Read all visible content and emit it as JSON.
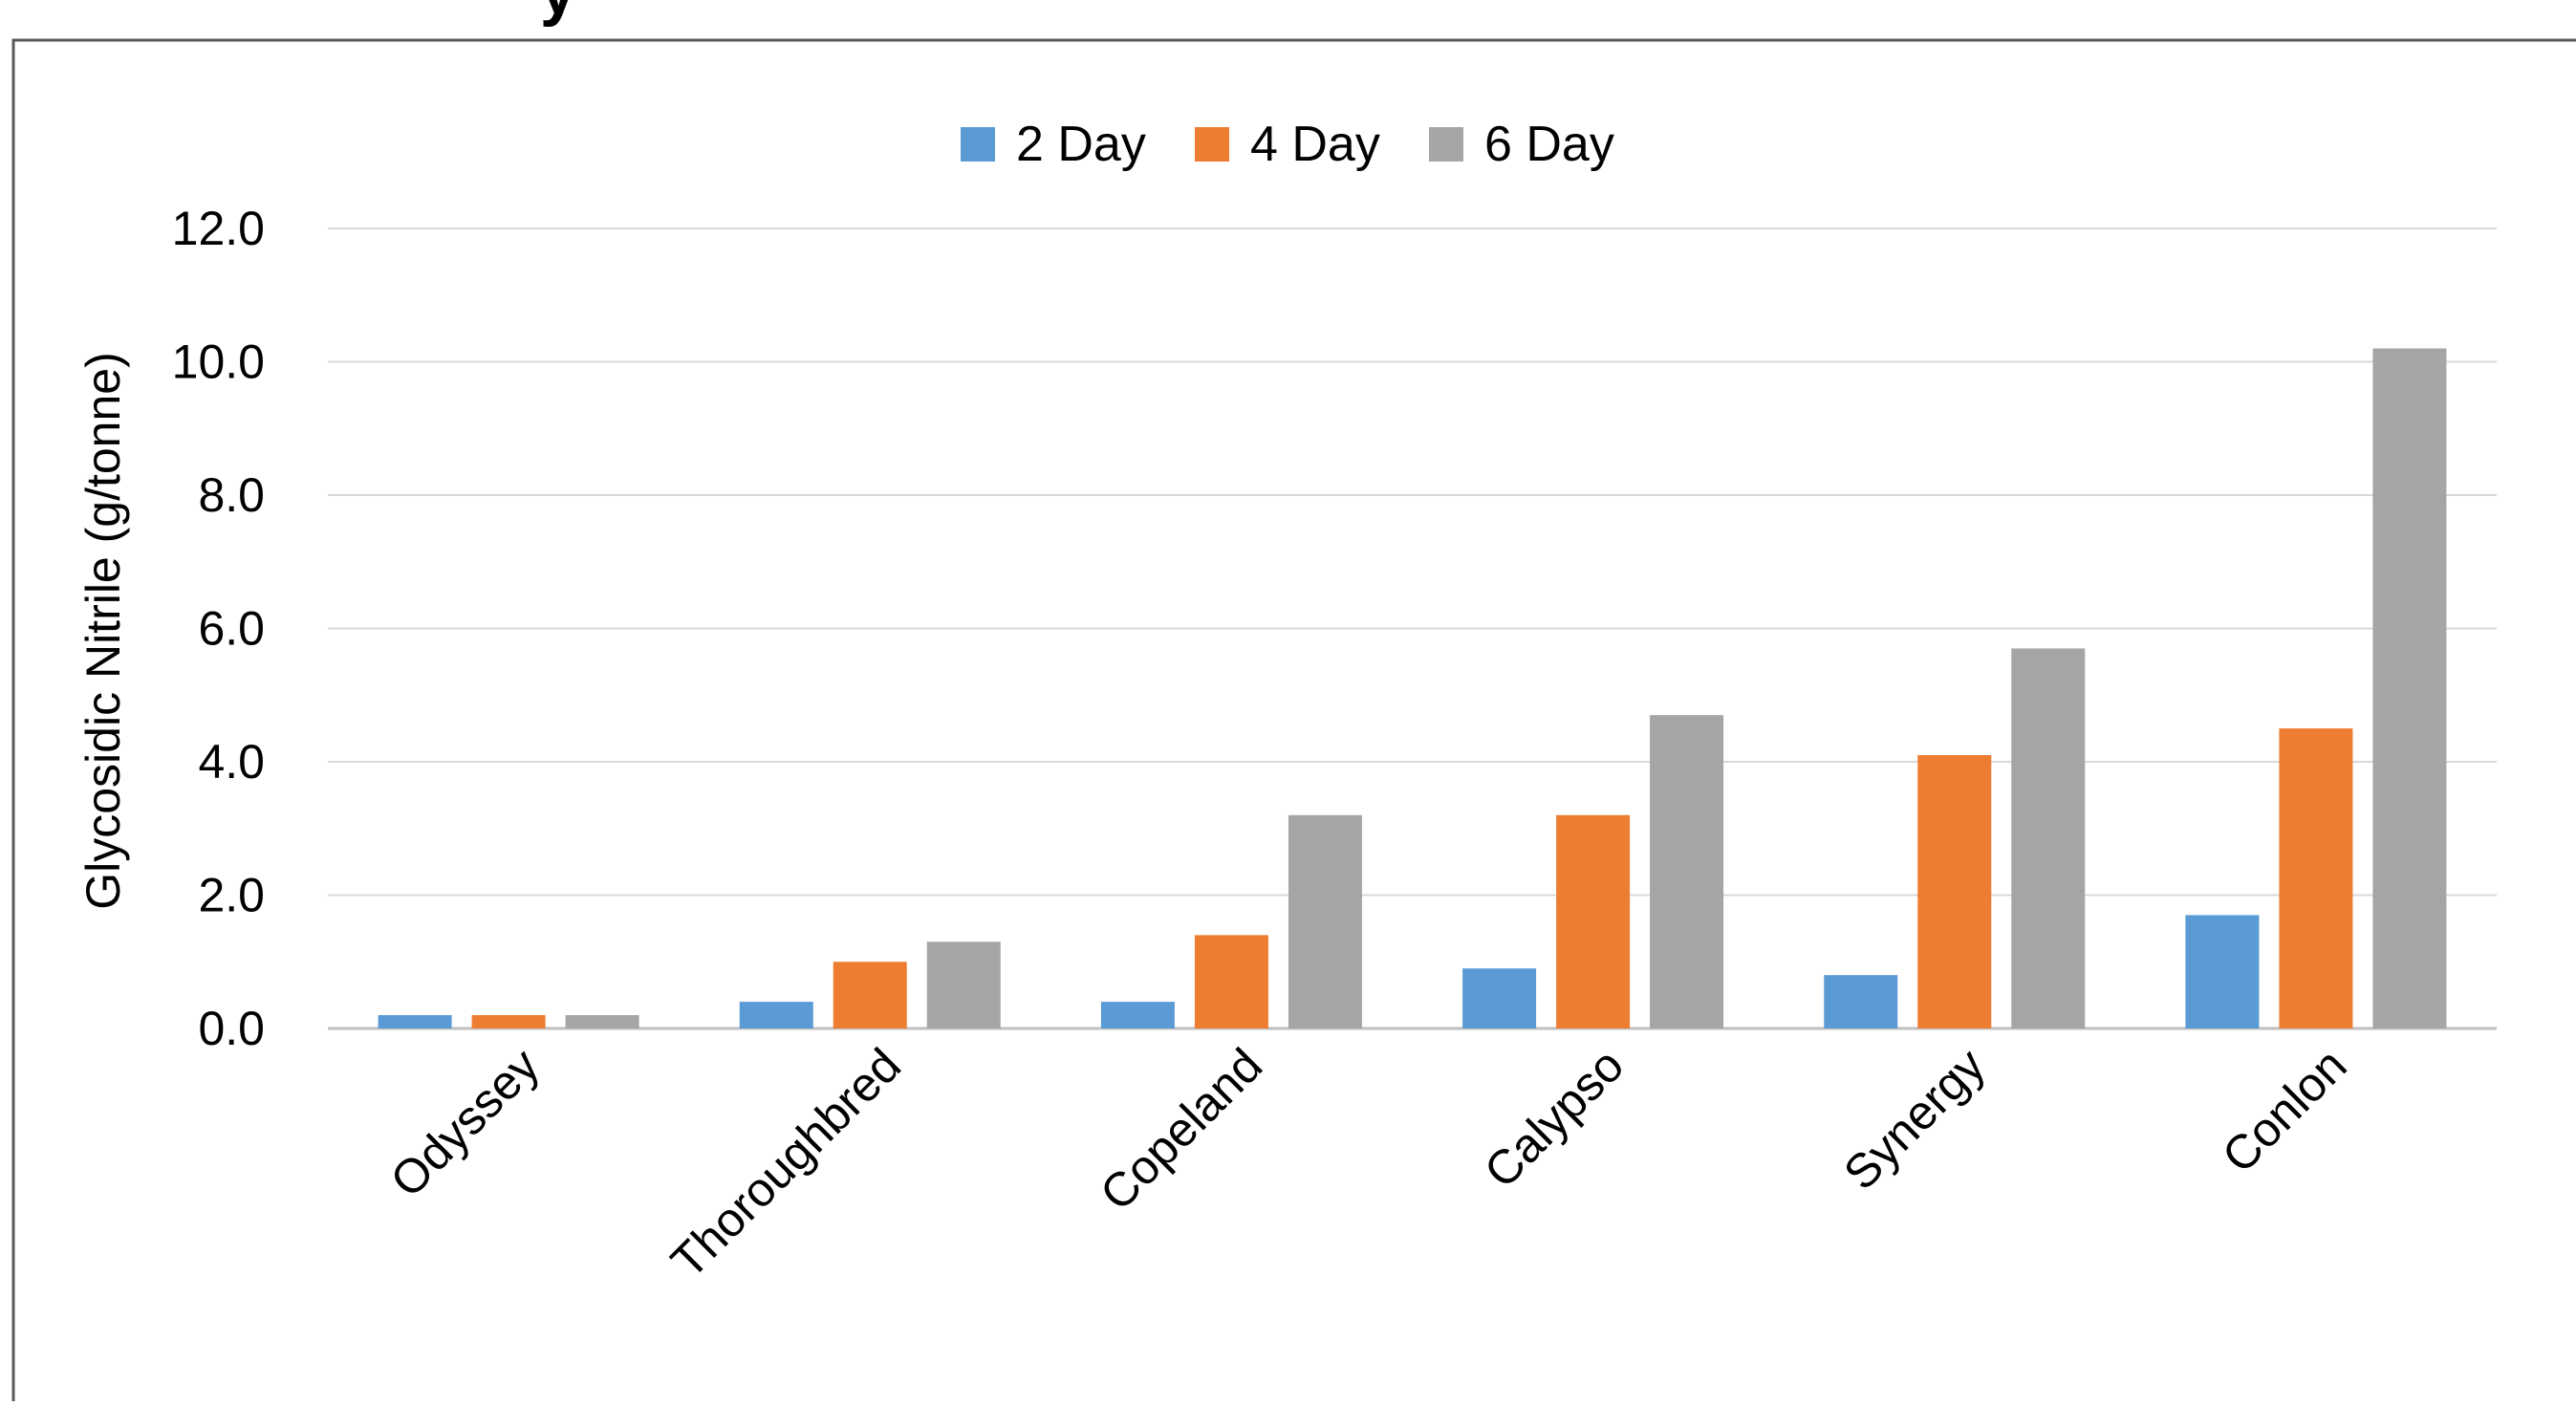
{
  "chart_data": {
    "type": "bar",
    "title_fragment": "y",
    "categories": [
      "Odyssey",
      "Thoroughbred",
      "Copeland",
      "Calypso",
      "Synergy",
      "Conlon"
    ],
    "series": [
      {
        "name": "2 Day",
        "color": "#5B9BD5",
        "values": [
          0.2,
          0.4,
          0.4,
          0.9,
          0.8,
          1.7
        ]
      },
      {
        "name": "4 Day",
        "color": "#ED7D31",
        "values": [
          0.2,
          1.0,
          1.4,
          3.2,
          4.1,
          4.5
        ]
      },
      {
        "name": "6 Day",
        "color": "#A5A5A5",
        "values": [
          0.2,
          1.3,
          3.2,
          4.7,
          5.7,
          10.2
        ]
      }
    ],
    "ylabel": "Glycosidic Nitrile (g/tonne)",
    "xlabel": "",
    "ylim": [
      0,
      12
    ],
    "yticks": [
      "0.0",
      "2.0",
      "4.0",
      "6.0",
      "8.0",
      "10.0",
      "12.0"
    ],
    "grid": true,
    "legend_position": "top"
  }
}
